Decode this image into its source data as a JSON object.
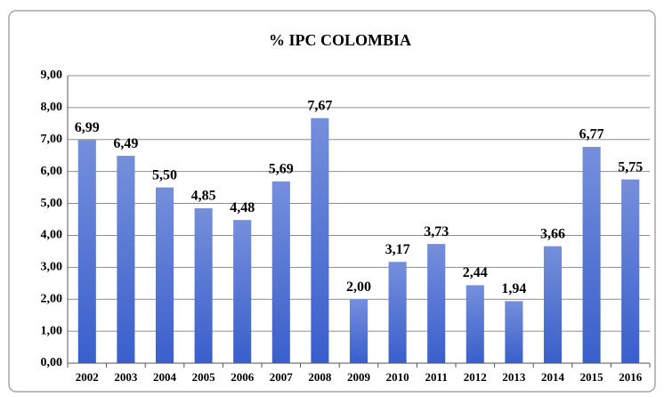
{
  "chart_data": {
    "type": "bar",
    "title": "% IPC COLOMBIA",
    "categories": [
      "2002",
      "2003",
      "2004",
      "2005",
      "2006",
      "2007",
      "2008",
      "2009",
      "2010",
      "2011",
      "2012",
      "2013",
      "2014",
      "2015",
      "2016"
    ],
    "values": [
      6.99,
      6.49,
      5.5,
      4.85,
      4.48,
      5.69,
      7.67,
      2.0,
      3.17,
      3.73,
      2.44,
      1.94,
      3.66,
      6.77,
      5.75
    ],
    "value_labels": [
      "6,99",
      "6,49",
      "5,50",
      "4,85",
      "4,48",
      "5,69",
      "7,67",
      "2,00",
      "3,17",
      "3,73",
      "2,44",
      "1,94",
      "3,66",
      "6,77",
      "5,75"
    ],
    "color": "#3a5fcc",
    "ylim": [
      0,
      9
    ],
    "yticks": [
      {
        "value": 0,
        "label": "0,00"
      },
      {
        "value": 1,
        "label": "1,00"
      },
      {
        "value": 2,
        "label": "2,00"
      },
      {
        "value": 3,
        "label": "3,00"
      },
      {
        "value": 4,
        "label": "4,00"
      },
      {
        "value": 5,
        "label": "5,00"
      },
      {
        "value": 6,
        "label": "6,00"
      },
      {
        "value": 7,
        "label": "7,00"
      },
      {
        "value": 8,
        "label": "8,00"
      },
      {
        "value": 9,
        "label": "9,00"
      }
    ],
    "grid": true
  }
}
